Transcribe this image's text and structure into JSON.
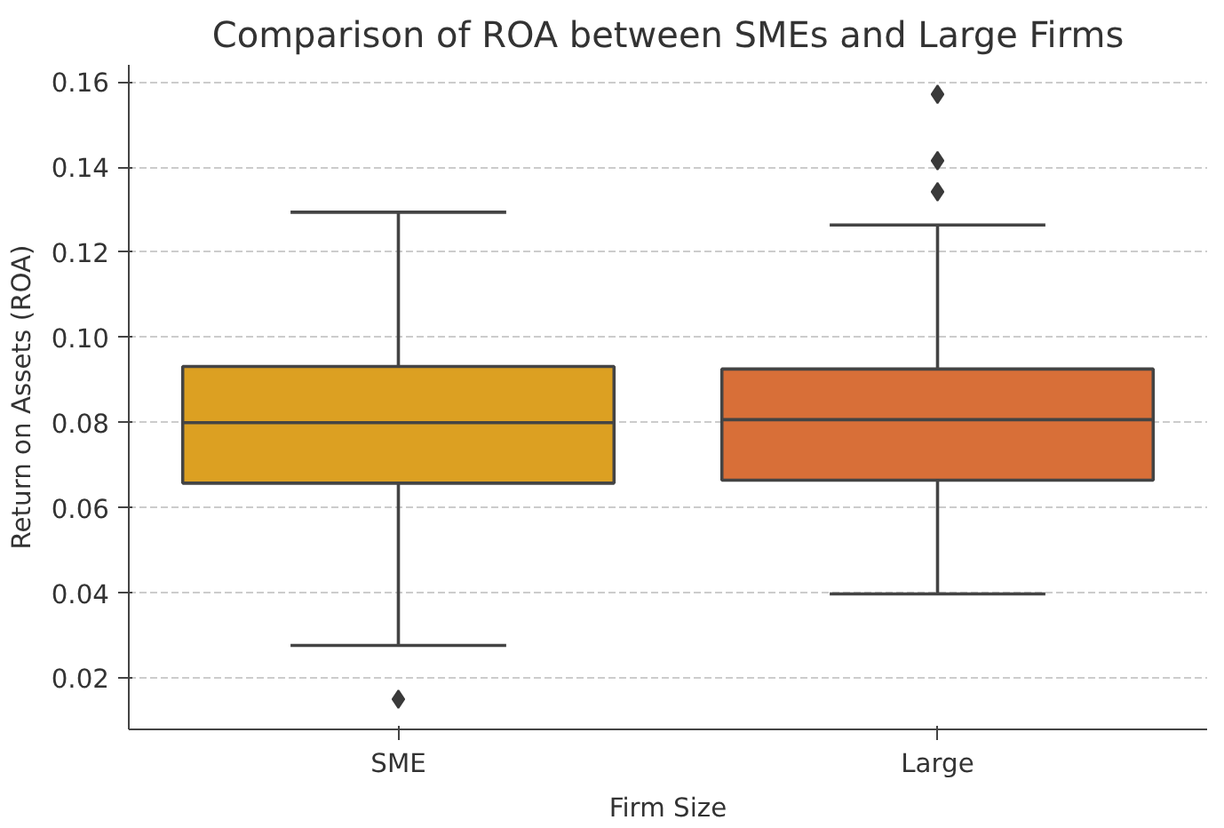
{
  "chart_data": {
    "type": "box",
    "title": "Comparison of ROA between SMEs and Large Firms",
    "xlabel": "Firm Size",
    "ylabel": "Return on Assets (ROA)",
    "categories": [
      "SME",
      "Large"
    ],
    "colors": [
      "#dca022",
      "#d86f38"
    ],
    "boxes": [
      {
        "low": 0.0277,
        "q1": 0.0658,
        "median": 0.08,
        "q3": 0.0932,
        "high": 0.1294,
        "outliers": [
          0.0151
        ]
      },
      {
        "low": 0.0398,
        "q1": 0.0665,
        "median": 0.0807,
        "q3": 0.0926,
        "high": 0.1264,
        "outliers": [
          0.1342,
          0.1415,
          0.1571
        ]
      }
    ],
    "ylim": [
      0.008,
      0.164
    ],
    "yticks": [
      0.02,
      0.04,
      0.06,
      0.08,
      {
        "value": 0.1,
        "label": "0.10"
      },
      0.12,
      0.14,
      0.16
    ],
    "grid": "y",
    "marker": "diamond"
  }
}
